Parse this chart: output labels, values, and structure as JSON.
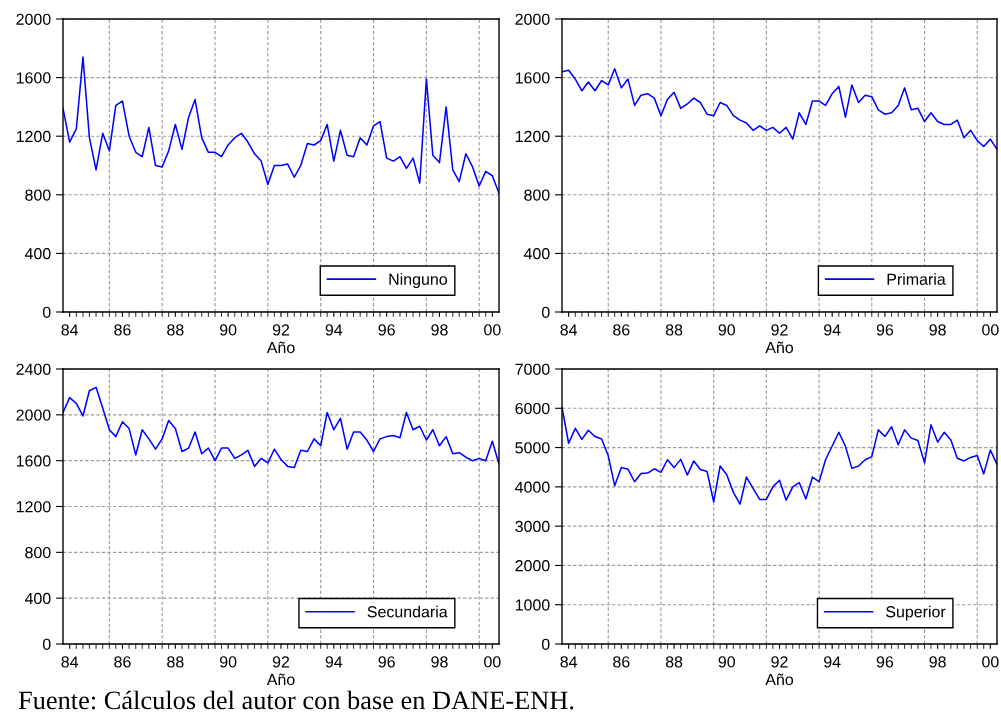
{
  "chart_data": [
    {
      "type": "line",
      "xlabel": "Año",
      "x": [
        "1984-05-15",
        "1984-08-15",
        "1984-11-15",
        "1985-02-15",
        "1985-05-15",
        "1985-08-15",
        "1985-11-15",
        "1986-02-15",
        "1986-05-15",
        "1986-08-15",
        "1986-11-15",
        "1987-02-15",
        "1987-05-15",
        "1987-08-15",
        "1987-11-15",
        "1988-02-15",
        "1988-05-15",
        "1988-08-15",
        "1988-11-15",
        "1989-02-15",
        "1989-05-15",
        "1989-08-15",
        "1989-11-15",
        "1990-02-15",
        "1990-05-15",
        "1990-08-15",
        "1990-11-15",
        "1991-02-15",
        "1991-05-15",
        "1991-08-15",
        "1991-11-15",
        "1992-02-15",
        "1992-05-15",
        "1992-08-15",
        "1992-11-15",
        "1993-02-15",
        "1993-05-15",
        "1993-08-15",
        "1993-11-15",
        "1994-02-15",
        "1994-05-15",
        "1994-08-15",
        "1994-11-15",
        "1995-02-15",
        "1995-05-15",
        "1995-08-15",
        "1995-11-15",
        "1996-02-15",
        "1996-05-15",
        "1996-08-15",
        "1996-11-15",
        "1997-02-15",
        "1997-05-15",
        "1997-08-15",
        "1997-11-15",
        "1998-02-15",
        "1998-05-15",
        "1998-08-15",
        "1998-11-15",
        "1999-02-15",
        "1999-05-15",
        "1999-08-15",
        "1999-11-15",
        "2000-02-15",
        "2000-05-15",
        "2000-08-15",
        "2000-11-15"
      ],
      "series": [
        {
          "name": "Ninguno",
          "color": "#0000ff",
          "values": [
            1390,
            1160,
            1250,
            1740,
            1190,
            970,
            1220,
            1100,
            1410,
            1440,
            1200,
            1090,
            1060,
            1260,
            1000,
            990,
            1100,
            1280,
            1110,
            1330,
            1450,
            1190,
            1090,
            1090,
            1060,
            1140,
            1190,
            1220,
            1160,
            1080,
            1030,
            870,
            1000,
            1000,
            1010,
            920,
            1000,
            1150,
            1140,
            1170,
            1280,
            1030,
            1240,
            1070,
            1060,
            1190,
            1140,
            1270,
            1300,
            1050,
            1030,
            1060,
            980,
            1050,
            880,
            1590,
            1070,
            1020,
            1400,
            970,
            890,
            1080,
            990,
            860,
            960,
            930,
            810
          ]
        }
      ],
      "xlim": [
        "1984-05-15",
        "2000-11-15"
      ],
      "ylim": [
        0,
        2000
      ],
      "yticks": [
        0,
        400,
        800,
        1200,
        1600,
        2000
      ],
      "xticks": [
        {
          "value": "1984-08-15",
          "label": "84"
        },
        {
          "value": "1986-08-15",
          "label": "86"
        },
        {
          "value": "1988-08-15",
          "label": "88"
        },
        {
          "value": "1990-08-15",
          "label": "90"
        },
        {
          "value": "1992-08-15",
          "label": "92"
        },
        {
          "value": "1994-08-15",
          "label": "94"
        },
        {
          "value": "1996-08-15",
          "label": "96"
        },
        {
          "value": "1998-08-15",
          "label": "98"
        },
        {
          "value": "2000-08-15",
          "label": "00"
        },
        {
          "value": "1986-02-15",
          "label": null
        },
        {
          "value": "1988-02-15",
          "label": null
        },
        {
          "value": "1990-02-15",
          "label": null
        },
        {
          "value": "1992-02-15",
          "label": null
        },
        {
          "value": "1994-02-15",
          "label": null
        },
        {
          "value": "1996-02-15",
          "label": null
        },
        {
          "value": "1998-02-15",
          "label": null
        },
        {
          "value": "2000-02-15",
          "label": null
        }
      ],
      "grid": true,
      "legend": "bottom right",
      "line_style": "solid"
    },
    {
      "type": "line",
      "xlabel": "Año",
      "x": [
        "1984-05-15",
        "1984-08-15",
        "1984-11-15",
        "1985-02-15",
        "1985-05-15",
        "1985-08-15",
        "1985-11-15",
        "1986-02-15",
        "1986-05-15",
        "1986-08-15",
        "1986-11-15",
        "1987-02-15",
        "1987-05-15",
        "1987-08-15",
        "1987-11-15",
        "1988-02-15",
        "1988-05-15",
        "1988-08-15",
        "1988-11-15",
        "1989-02-15",
        "1989-05-15",
        "1989-08-15",
        "1989-11-15",
        "1990-02-15",
        "1990-05-15",
        "1990-08-15",
        "1990-11-15",
        "1991-02-15",
        "1991-05-15",
        "1991-08-15",
        "1991-11-15",
        "1992-02-15",
        "1992-05-15",
        "1992-08-15",
        "1992-11-15",
        "1993-02-15",
        "1993-05-15",
        "1993-08-15",
        "1993-11-15",
        "1994-02-15",
        "1994-05-15",
        "1994-08-15",
        "1994-11-15",
        "1995-02-15",
        "1995-05-15",
        "1995-08-15",
        "1995-11-15",
        "1996-02-15",
        "1996-05-15",
        "1996-08-15",
        "1996-11-15",
        "1997-02-15",
        "1997-05-15",
        "1997-08-15",
        "1997-11-15",
        "1998-02-15",
        "1998-05-15",
        "1998-08-15",
        "1998-11-15",
        "1999-02-15",
        "1999-05-15",
        "1999-08-15",
        "1999-11-15",
        "2000-02-15",
        "2000-05-15",
        "2000-08-15",
        "2000-11-15"
      ],
      "series": [
        {
          "name": "Primaria",
          "color": "#0000ff",
          "values": [
            1640,
            1650,
            1590,
            1510,
            1570,
            1510,
            1580,
            1550,
            1660,
            1530,
            1590,
            1410,
            1480,
            1490,
            1460,
            1340,
            1450,
            1500,
            1390,
            1420,
            1460,
            1430,
            1350,
            1340,
            1430,
            1410,
            1340,
            1310,
            1290,
            1240,
            1270,
            1240,
            1260,
            1220,
            1260,
            1180,
            1360,
            1280,
            1440,
            1440,
            1410,
            1490,
            1540,
            1330,
            1550,
            1430,
            1480,
            1470,
            1380,
            1350,
            1360,
            1410,
            1530,
            1380,
            1390,
            1300,
            1360,
            1300,
            1280,
            1280,
            1310,
            1190,
            1240,
            1170,
            1130,
            1180,
            1110
          ]
        }
      ],
      "xlim": [
        "1984-05-15",
        "2000-11-15"
      ],
      "ylim": [
        0,
        2000
      ],
      "yticks": [
        0,
        400,
        800,
        1200,
        1600,
        2000
      ],
      "xticks": [
        {
          "value": "1984-08-15",
          "label": "84"
        },
        {
          "value": "1986-08-15",
          "label": "86"
        },
        {
          "value": "1988-08-15",
          "label": "88"
        },
        {
          "value": "1990-08-15",
          "label": "90"
        },
        {
          "value": "1992-08-15",
          "label": "92"
        },
        {
          "value": "1994-08-15",
          "label": "94"
        },
        {
          "value": "1996-08-15",
          "label": "96"
        },
        {
          "value": "1998-08-15",
          "label": "98"
        },
        {
          "value": "2000-08-15",
          "label": "00"
        },
        {
          "value": "1986-02-15",
          "label": null
        },
        {
          "value": "1988-02-15",
          "label": null
        },
        {
          "value": "1990-02-15",
          "label": null
        },
        {
          "value": "1992-02-15",
          "label": null
        },
        {
          "value": "1994-02-15",
          "label": null
        },
        {
          "value": "1996-02-15",
          "label": null
        },
        {
          "value": "1998-02-15",
          "label": null
        },
        {
          "value": "2000-02-15",
          "label": null
        }
      ],
      "grid": true,
      "legend": "bottom right",
      "line_style": "solid"
    },
    {
      "type": "line",
      "xlabel": "Año",
      "annotations": [
        "Fuente: Cálculos del autor con base en DANE-ENH."
      ],
      "x": [
        "1984-05-15",
        "1984-08-15",
        "1984-11-15",
        "1985-02-15",
        "1985-05-15",
        "1985-08-15",
        "1985-11-15",
        "1986-02-15",
        "1986-05-15",
        "1986-08-15",
        "1986-11-15",
        "1987-02-15",
        "1987-05-15",
        "1987-08-15",
        "1987-11-15",
        "1988-02-15",
        "1988-05-15",
        "1988-08-15",
        "1988-11-15",
        "1989-02-15",
        "1989-05-15",
        "1989-08-15",
        "1989-11-15",
        "1990-02-15",
        "1990-05-15",
        "1990-08-15",
        "1990-11-15",
        "1991-02-15",
        "1991-05-15",
        "1991-08-15",
        "1991-11-15",
        "1992-02-15",
        "1992-05-15",
        "1992-08-15",
        "1992-11-15",
        "1993-02-15",
        "1993-05-15",
        "1993-08-15",
        "1993-11-15",
        "1994-02-15",
        "1994-05-15",
        "1994-08-15",
        "1994-11-15",
        "1995-02-15",
        "1995-05-15",
        "1995-08-15",
        "1995-11-15",
        "1996-02-15",
        "1996-05-15",
        "1996-08-15",
        "1996-11-15",
        "1997-02-15",
        "1997-05-15",
        "1997-08-15",
        "1997-11-15",
        "1998-02-15",
        "1998-05-15",
        "1998-08-15",
        "1998-11-15",
        "1999-02-15",
        "1999-05-15",
        "1999-08-15",
        "1999-11-15",
        "2000-02-15",
        "2000-05-15",
        "2000-08-15",
        "2000-11-15"
      ],
      "series": [
        {
          "name": "Secundaria",
          "color": "#0000ff",
          "values": [
            2020,
            2150,
            2100,
            1990,
            2210,
            2240,
            2060,
            1870,
            1810,
            1940,
            1880,
            1650,
            1870,
            1790,
            1700,
            1790,
            1950,
            1880,
            1680,
            1710,
            1850,
            1660,
            1710,
            1600,
            1710,
            1710,
            1620,
            1650,
            1690,
            1550,
            1620,
            1580,
            1700,
            1610,
            1550,
            1540,
            1690,
            1680,
            1790,
            1730,
            2020,
            1870,
            1970,
            1700,
            1850,
            1850,
            1780,
            1680,
            1790,
            1810,
            1820,
            1800,
            2020,
            1870,
            1900,
            1780,
            1870,
            1730,
            1810,
            1660,
            1670,
            1630,
            1600,
            1620,
            1600,
            1770,
            1570
          ]
        }
      ],
      "xlim": [
        "1984-05-15",
        "2000-11-15"
      ],
      "ylim": [
        0,
        2400
      ],
      "yticks": [
        0,
        400,
        800,
        1200,
        1600,
        2000,
        2400
      ],
      "xticks": [
        {
          "value": "1984-08-15",
          "label": "84"
        },
        {
          "value": "1986-08-15",
          "label": "86"
        },
        {
          "value": "1988-08-15",
          "label": "88"
        },
        {
          "value": "1990-08-15",
          "label": "90"
        },
        {
          "value": "1992-08-15",
          "label": "92"
        },
        {
          "value": "1994-08-15",
          "label": "94"
        },
        {
          "value": "1996-08-15",
          "label": "96"
        },
        {
          "value": "1998-08-15",
          "label": "98"
        },
        {
          "value": "2000-08-15",
          "label": "00"
        },
        {
          "value": "1986-02-15",
          "label": null
        },
        {
          "value": "1988-02-15",
          "label": null
        },
        {
          "value": "1990-02-15",
          "label": null
        },
        {
          "value": "1992-02-15",
          "label": null
        },
        {
          "value": "1994-02-15",
          "label": null
        },
        {
          "value": "1996-02-15",
          "label": null
        },
        {
          "value": "1998-02-15",
          "label": null
        },
        {
          "value": "2000-02-15",
          "label": null
        }
      ],
      "grid": true,
      "legend": "bottom right",
      "line_style": "solid"
    },
    {
      "type": "line",
      "xlabel": "Año",
      "x": [
        "1984-05-15",
        "1984-08-15",
        "1984-11-15",
        "1985-02-15",
        "1985-05-15",
        "1985-08-15",
        "1985-11-15",
        "1986-02-15",
        "1986-05-15",
        "1986-08-15",
        "1986-11-15",
        "1987-02-15",
        "1987-05-15",
        "1987-08-15",
        "1987-11-15",
        "1988-02-15",
        "1988-05-15",
        "1988-08-15",
        "1988-11-15",
        "1989-02-15",
        "1989-05-15",
        "1989-08-15",
        "1989-11-15",
        "1990-02-15",
        "1990-05-15",
        "1990-08-15",
        "1990-11-15",
        "1991-02-15",
        "1991-05-15",
        "1991-08-15",
        "1991-11-15",
        "1992-02-15",
        "1992-05-15",
        "1992-08-15",
        "1992-11-15",
        "1993-02-15",
        "1993-05-15",
        "1993-08-15",
        "1993-11-15",
        "1994-02-15",
        "1994-05-15",
        "1994-08-15",
        "1994-11-15",
        "1995-02-15",
        "1995-05-15",
        "1995-08-15",
        "1995-11-15",
        "1996-02-15",
        "1996-05-15",
        "1996-08-15",
        "1996-11-15",
        "1997-02-15",
        "1997-05-15",
        "1997-08-15",
        "1997-11-15",
        "1998-02-15",
        "1998-05-15",
        "1998-08-15",
        "1998-11-15",
        "1999-02-15",
        "1999-05-15",
        "1999-08-15",
        "1999-11-15",
        "2000-02-15",
        "2000-05-15",
        "2000-08-15",
        "2000-11-15"
      ],
      "series": [
        {
          "name": "Superior",
          "color": "#0000ff",
          "values": [
            6020,
            5110,
            5490,
            5210,
            5440,
            5280,
            5220,
            4790,
            4030,
            4490,
            4450,
            4130,
            4340,
            4350,
            4460,
            4370,
            4690,
            4490,
            4700,
            4300,
            4660,
            4440,
            4390,
            3620,
            4530,
            4310,
            3860,
            3560,
            4250,
            3960,
            3680,
            3680,
            4000,
            4170,
            3660,
            4000,
            4110,
            3690,
            4250,
            4130,
            4690,
            5040,
            5390,
            5030,
            4470,
            4530,
            4690,
            4770,
            5450,
            5280,
            5530,
            5070,
            5450,
            5240,
            5180,
            4610,
            5580,
            5140,
            5390,
            5190,
            4730,
            4660,
            4750,
            4800,
            4330,
            4940,
            4570
          ]
        }
      ],
      "xlim": [
        "1984-05-15",
        "2000-11-15"
      ],
      "ylim": [
        0,
        7000
      ],
      "yticks": [
        0,
        1000,
        2000,
        3000,
        4000,
        5000,
        6000,
        7000
      ],
      "xticks": [
        {
          "value": "1984-08-15",
          "label": "84"
        },
        {
          "value": "1986-08-15",
          "label": "86"
        },
        {
          "value": "1988-08-15",
          "label": "88"
        },
        {
          "value": "1990-08-15",
          "label": "90"
        },
        {
          "value": "1992-08-15",
          "label": "92"
        },
        {
          "value": "1994-08-15",
          "label": "94"
        },
        {
          "value": "1996-08-15",
          "label": "96"
        },
        {
          "value": "1998-08-15",
          "label": "98"
        },
        {
          "value": "2000-08-15",
          "label": "00"
        },
        {
          "value": "1986-02-15",
          "label": null
        },
        {
          "value": "1988-02-15",
          "label": null
        },
        {
          "value": "1990-02-15",
          "label": null
        },
        {
          "value": "1992-02-15",
          "label": null
        },
        {
          "value": "1994-02-15",
          "label": null
        },
        {
          "value": "1996-02-15",
          "label": null
        },
        {
          "value": "1998-02-15",
          "label": null
        },
        {
          "value": "2000-02-15",
          "label": null
        }
      ],
      "grid": true,
      "legend": "bottom right",
      "line_style": "solid"
    }
  ]
}
